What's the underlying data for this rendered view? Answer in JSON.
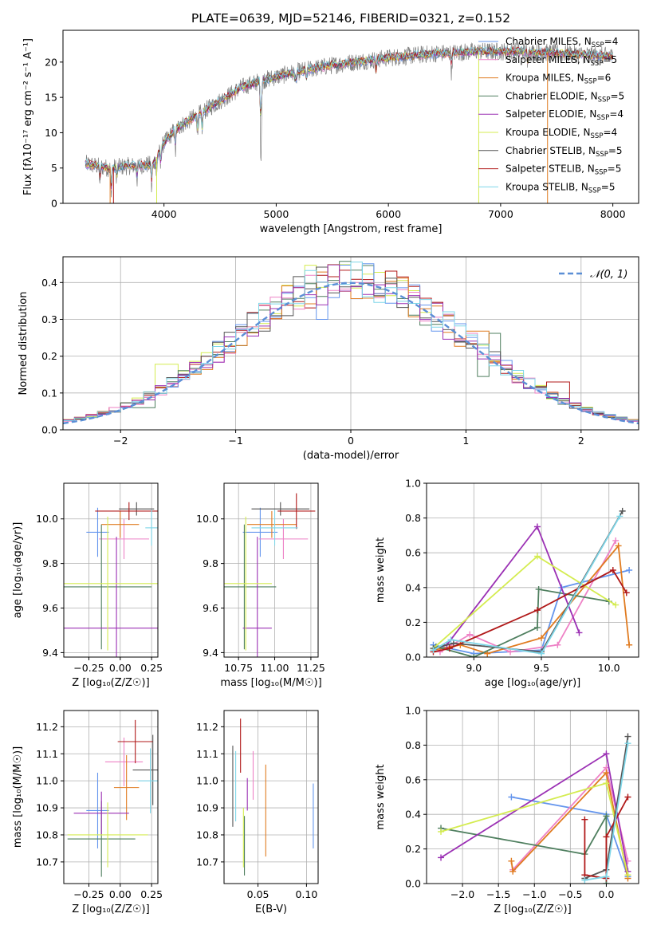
{
  "figure_title": "PLATE=0639, MJD=52146, FIBERID=0321, z=0.152",
  "colors": {
    "chabrier_miles": "#6495ed",
    "salpeter_miles": "#ee82c6",
    "kroupa_miles": "#e07b20",
    "chabrier_elodie": "#4f7f5f",
    "salpeter_elodie": "#9b30b4",
    "kroupa_elodie": "#d4ec50",
    "chabrier_stelib": "#555555",
    "salpeter_stelib": "#b01818",
    "kroupa_stelib": "#7ed6e8",
    "normal_curve": "#5b8fd6",
    "grid": "#b0b0b0"
  },
  "chart_data": [
    {
      "id": "spectrum",
      "type": "line",
      "xlabel": "wavelength [Angstrom, rest frame]",
      "ylabel": "Flux [fλ10⁻¹⁷ erg cm⁻² s⁻¹ A⁻¹]",
      "xlim": [
        3100,
        8230
      ],
      "ylim": [
        0,
        24.5
      ],
      "xticks": [
        4000,
        5000,
        6000,
        7000,
        8000
      ],
      "yticks": [
        0,
        5,
        10,
        15,
        20
      ],
      "grid": false,
      "legend": "top-right",
      "legend_entries": [
        {
          "key": "chabrier_miles",
          "prefix": "Chabrier MILES, N",
          "sub": "SSP",
          "suffix": "=4"
        },
        {
          "key": "salpeter_miles",
          "prefix": "Salpeter MILES, N",
          "sub": "SSP",
          "suffix": "=5"
        },
        {
          "key": "kroupa_miles",
          "prefix": "Kroupa MILES, N",
          "sub": "SSP",
          "suffix": "=6"
        },
        {
          "key": "chabrier_elodie",
          "prefix": "Chabrier ELODIE, N",
          "sub": "SSP",
          "suffix": "=5"
        },
        {
          "key": "salpeter_elodie",
          "prefix": "Salpeter ELODIE, N",
          "sub": "SSP",
          "suffix": "=4"
        },
        {
          "key": "kroupa_elodie",
          "prefix": "Kroupa ELODIE, N",
          "sub": "SSP",
          "suffix": "=4"
        },
        {
          "key": "chabrier_stelib",
          "prefix": "Chabrier STELIB, N",
          "sub": "SSP",
          "suffix": "=5"
        },
        {
          "key": "salpeter_stelib",
          "prefix": "Salpeter STELIB, N",
          "sub": "SSP",
          "suffix": "=5"
        },
        {
          "key": "kroupa_stelib",
          "prefix": "Kroupa STELIB, N",
          "sub": "SSP",
          "suffix": "=5"
        }
      ],
      "continuum": [
        [
          3300,
          5.6
        ],
        [
          3500,
          5.0
        ],
        [
          3700,
          5.3
        ],
        [
          3900,
          5.5
        ],
        [
          4000,
          8.5
        ],
        [
          4100,
          10.5
        ],
        [
          4300,
          12.5
        ],
        [
          4500,
          14.5
        ],
        [
          4700,
          16.5
        ],
        [
          4900,
          17.5
        ],
        [
          5100,
          18.3
        ],
        [
          5300,
          19.0
        ],
        [
          5600,
          19.8
        ],
        [
          6000,
          20.6
        ],
        [
          6400,
          21.2
        ],
        [
          6800,
          21.5
        ],
        [
          7200,
          21.5
        ],
        [
          7600,
          21.2
        ],
        [
          8000,
          20.8
        ]
      ],
      "absorption_lines": [
        [
          3430,
          2.5
        ],
        [
          3530,
          4.5
        ],
        [
          3580,
          2.0
        ],
        [
          3760,
          2.0
        ],
        [
          3890,
          3.5
        ],
        [
          3934,
          3.0
        ],
        [
          3970,
          2.5
        ],
        [
          4102,
          3.5
        ],
        [
          4300,
          3.0
        ],
        [
          4340,
          3.5
        ],
        [
          4861,
          3.0
        ],
        [
          4865,
          9.0
        ],
        [
          5175,
          2.5
        ],
        [
          5270,
          2.0
        ],
        [
          5890,
          2.5
        ],
        [
          6563,
          3.0
        ],
        [
          7240,
          2.0
        ]
      ],
      "model_spikes": [
        [
          3550,
          "salpeter_stelib"
        ],
        [
          3520,
          "kroupa_miles"
        ],
        [
          3935,
          "kroupa_elodie"
        ],
        [
          6805,
          "kroupa_elodie"
        ],
        [
          7418,
          "kroupa_miles"
        ]
      ]
    },
    {
      "id": "residuals",
      "type": "line",
      "xlabel": "(data-model)/error",
      "ylabel": "Normed distribution",
      "xlim": [
        -2.5,
        2.5
      ],
      "ylim": [
        0,
        0.47
      ],
      "xticks": [
        -2,
        -1,
        0,
        1,
        2
      ],
      "yticks": [
        0.0,
        0.1,
        0.2,
        0.3,
        0.4
      ],
      "grid": true,
      "legend": "top-right",
      "legend_label": "𝒩(0, 1)",
      "bins": 50,
      "normal_curve": {
        "mean": 0,
        "sigma": 1
      },
      "histograms": [
        {
          "key": "kroupa_elodie",
          "spikes": [
            [
              -0.35,
              0.447
            ],
            [
              -1.6,
              0.178
            ]
          ]
        },
        {
          "key": "chabrier_elodie",
          "spikes": [
            [
              1.25,
              0.262
            ],
            [
              1.15,
              0.145
            ],
            [
              -1.8,
              0.06
            ]
          ]
        },
        {
          "key": "salpeter_stelib",
          "spikes": [
            [
              0.05,
              0.409
            ],
            [
              1.8,
              0.13
            ]
          ]
        },
        {
          "key": "chabrier_miles",
          "spikes": [
            [
              -0.25,
              0.3
            ]
          ]
        },
        {
          "key": "salpeter_miles",
          "spikes": [
            [
              0.1,
              0.4
            ]
          ]
        },
        {
          "key": "kroupa_miles",
          "spikes": [
            [
              1.1,
              0.268
            ]
          ]
        },
        {
          "key": "chabrier_stelib",
          "spikes": [
            [
              -0.6,
              0.31
            ]
          ]
        },
        {
          "key": "salpeter_elodie",
          "spikes": [
            [
              0.35,
              0.37
            ]
          ]
        },
        {
          "key": "kroupa_stelib",
          "spikes": [
            [
              -0.1,
              0.395
            ]
          ]
        }
      ]
    },
    {
      "id": "age_vs_Z",
      "type": "scatter",
      "xlabel": "Z [log₁₀(Z/Z☉)]",
      "ylabel": "age  [log₁₀(age/yr)]",
      "xlim": [
        -0.45,
        0.3
      ],
      "ylim": [
        9.38,
        10.16
      ],
      "xticks": [
        -0.25,
        0.0,
        0.25
      ],
      "yticks": [
        9.4,
        9.6,
        9.8,
        10.0
      ],
      "grid": true,
      "points": [
        {
          "key": "chabrier_miles",
          "x": -0.18,
          "y": 9.94,
          "xerr": 0.09,
          "yerr": 0.11
        },
        {
          "key": "salpeter_miles",
          "x": 0.03,
          "y": 9.91,
          "xerr": 0.2,
          "yerr": 0.09
        },
        {
          "key": "kroupa_miles",
          "x": 0.0,
          "y": 9.975,
          "xerr": 0.15,
          "yerr": 0.06
        },
        {
          "key": "chabrier_elodie",
          "x": -0.15,
          "y": 9.695,
          "xerr": 0.4,
          "yerr": 0.28
        },
        {
          "key": "salpeter_elodie",
          "x": -0.03,
          "y": 9.51,
          "xerr": 0.42,
          "yerr": 0.41
        },
        {
          "key": "kroupa_elodie",
          "x": -0.1,
          "y": 9.71,
          "xerr": 0.41,
          "yerr": 0.3
        },
        {
          "key": "chabrier_stelib",
          "x": 0.13,
          "y": 10.045,
          "xerr": 0.14,
          "yerr": 0.03
        },
        {
          "key": "salpeter_stelib",
          "x": 0.07,
          "y": 10.035,
          "xerr": 0.27,
          "yerr": 0.04
        },
        {
          "key": "kroupa_stelib",
          "x": 0.25,
          "y": 9.96,
          "xerr": 0.05,
          "yerr": 0.08
        }
      ]
    },
    {
      "id": "age_vs_mass",
      "type": "scatter",
      "xlabel": "mass [log₁₀(M/M☉)]",
      "ylabel": "",
      "xlim": [
        10.65,
        11.3
      ],
      "ylim": [
        9.38,
        10.16
      ],
      "xticks": [
        10.75,
        11.0,
        11.25
      ],
      "yticks": [
        9.4,
        9.6,
        9.8,
        10.0
      ],
      "grid": true,
      "points": [
        {
          "key": "chabrier_miles",
          "x": 10.9,
          "y": 9.94,
          "xerr": 0.12,
          "yerr": 0.11
        },
        {
          "key": "salpeter_miles",
          "x": 11.06,
          "y": 9.91,
          "xerr": 0.17,
          "yerr": 0.09
        },
        {
          "key": "kroupa_miles",
          "x": 10.98,
          "y": 9.975,
          "xerr": 0.17,
          "yerr": 0.06
        },
        {
          "key": "chabrier_elodie",
          "x": 10.79,
          "y": 9.695,
          "xerr": 0.22,
          "yerr": 0.28
        },
        {
          "key": "salpeter_elodie",
          "x": 10.88,
          "y": 9.51,
          "xerr": 0.1,
          "yerr": 0.41
        },
        {
          "key": "kroupa_elodie",
          "x": 10.8,
          "y": 9.71,
          "xerr": 0.18,
          "yerr": 0.3
        },
        {
          "key": "chabrier_stelib",
          "x": 11.04,
          "y": 10.045,
          "xerr": 0.2,
          "yerr": 0.03
        },
        {
          "key": "salpeter_stelib",
          "x": 11.15,
          "y": 10.035,
          "xerr": 0.13,
          "yerr": 0.08
        },
        {
          "key": "kroupa_stelib",
          "x": 11.0,
          "y": 9.96,
          "xerr": 0.16,
          "yerr": 0.08
        }
      ]
    },
    {
      "id": "weight_vs_age",
      "type": "line",
      "xlabel": "age  [log₁₀(age/yr)]",
      "ylabel": "mass weight",
      "xlim": [
        8.65,
        10.22
      ],
      "ylim": [
        0.0,
        1.0
      ],
      "xticks": [
        9.0,
        9.5,
        10.0
      ],
      "yticks": [
        0.0,
        0.2,
        0.4,
        0.6,
        0.8,
        1.0
      ],
      "grid": true,
      "series": [
        {
          "key": "chabrier_miles",
          "x": [
            8.7,
            9.0,
            9.5,
            9.65,
            10.15
          ],
          "y": [
            0.07,
            0.02,
            0.04,
            0.4,
            0.5
          ]
        },
        {
          "key": "salpeter_miles",
          "x": [
            8.75,
            8.97,
            9.27,
            9.62,
            10.05
          ],
          "y": [
            0.03,
            0.13,
            0.03,
            0.07,
            0.67
          ]
        },
        {
          "key": "kroupa_miles",
          "x": [
            8.7,
            8.9,
            9.1,
            9.5,
            10.07,
            10.15
          ],
          "y": [
            0.04,
            0.07,
            0.02,
            0.11,
            0.64,
            0.07
          ]
        },
        {
          "key": "chabrier_elodie",
          "x": [
            8.72,
            9.0,
            9.47,
            9.48,
            10.0
          ],
          "y": [
            0.06,
            0.0,
            0.17,
            0.39,
            0.32
          ]
        },
        {
          "key": "salpeter_elodie",
          "x": [
            8.8,
            9.47,
            9.78
          ],
          "y": [
            0.07,
            0.75,
            0.14
          ]
        },
        {
          "key": "kroupa_elodie",
          "x": [
            8.7,
            9.47,
            10.05
          ],
          "y": [
            0.05,
            0.58,
            0.3
          ]
        },
        {
          "key": "chabrier_stelib",
          "x": [
            8.7,
            8.85,
            9.5,
            10.1
          ],
          "y": [
            0.05,
            0.08,
            0.03,
            0.84
          ]
        },
        {
          "key": "salpeter_stelib",
          "x": [
            8.7,
            8.82,
            9.47,
            10.03,
            10.13
          ],
          "y": [
            0.03,
            0.05,
            0.27,
            0.5,
            0.37
          ]
        },
        {
          "key": "kroupa_stelib",
          "x": [
            8.7,
            8.83,
            9.5,
            10.08
          ],
          "y": [
            0.04,
            0.1,
            0.02,
            0.81
          ]
        }
      ]
    },
    {
      "id": "mass_vs_Z",
      "type": "scatter",
      "xlabel": "Z [log₁₀(Z/Z☉)]",
      "ylabel": "mass [log₁₀(M/M☉)]",
      "xlim": [
        -0.45,
        0.3
      ],
      "ylim": [
        10.62,
        11.26
      ],
      "xticks": [
        -0.25,
        0.0,
        0.25
      ],
      "yticks": [
        10.7,
        10.8,
        10.9,
        11.0,
        11.1,
        11.2
      ],
      "grid": true,
      "points": [
        {
          "key": "chabrier_miles",
          "x": -0.18,
          "y": 10.89,
          "xerr": 0.09,
          "yerr": 0.14
        },
        {
          "key": "salpeter_miles",
          "x": 0.03,
          "y": 11.07,
          "xerr": 0.15,
          "yerr": 0.09
        },
        {
          "key": "kroupa_miles",
          "x": 0.05,
          "y": 10.975,
          "xerr": 0.1,
          "yerr": 0.12
        },
        {
          "key": "chabrier_elodie",
          "x": -0.15,
          "y": 10.785,
          "xerr": 0.27,
          "yerr": 0.14
        },
        {
          "key": "salpeter_elodie",
          "x": -0.15,
          "y": 10.88,
          "xerr": 0.22,
          "yerr": 0.08
        },
        {
          "key": "kroupa_elodie",
          "x": -0.1,
          "y": 10.8,
          "xerr": 0.32,
          "yerr": 0.12
        },
        {
          "key": "chabrier_stelib",
          "x": 0.26,
          "y": 11.04,
          "xerr": 0.16,
          "yerr": 0.13
        },
        {
          "key": "salpeter_stelib",
          "x": 0.12,
          "y": 11.145,
          "xerr": 0.14,
          "yerr": 0.08
        },
        {
          "key": "kroupa_stelib",
          "x": 0.24,
          "y": 11.0,
          "xerr": 0.1,
          "yerr": 0.12
        }
      ]
    },
    {
      "id": "mass_vs_ebv",
      "type": "scatter",
      "xlabel": "E(B-V)",
      "ylabel": "",
      "xlim": [
        0.015,
        0.112
      ],
      "ylim": [
        10.62,
        11.26
      ],
      "xticks": [
        0.05,
        0.1
      ],
      "yticks": [
        10.7,
        10.8,
        10.9,
        11.0,
        11.1,
        11.2
      ],
      "grid": true,
      "points": [
        {
          "key": "chabrier_miles",
          "x": 0.107,
          "y": 10.87,
          "xerr": 0,
          "yerr": 0.12
        },
        {
          "key": "salpeter_miles",
          "x": 0.045,
          "y": 11.02,
          "xerr": 0,
          "yerr": 0.09
        },
        {
          "key": "kroupa_miles",
          "x": 0.058,
          "y": 10.89,
          "xerr": 0,
          "yerr": 0.17
        },
        {
          "key": "chabrier_elodie",
          "x": 0.036,
          "y": 10.76,
          "xerr": 0,
          "yerr": 0.11
        },
        {
          "key": "salpeter_elodie",
          "x": 0.039,
          "y": 10.95,
          "xerr": 0,
          "yerr": 0.06
        },
        {
          "key": "kroupa_elodie",
          "x": 0.035,
          "y": 10.79,
          "xerr": 0,
          "yerr": 0.11
        },
        {
          "key": "chabrier_stelib",
          "x": 0.024,
          "y": 10.98,
          "xerr": 0,
          "yerr": 0.15
        },
        {
          "key": "salpeter_stelib",
          "x": 0.032,
          "y": 11.13,
          "xerr": 0,
          "yerr": 0.1
        },
        {
          "key": "kroupa_stelib",
          "x": 0.027,
          "y": 10.98,
          "xerr": 0,
          "yerr": 0.13
        }
      ]
    },
    {
      "id": "weight_vs_Z",
      "type": "line",
      "xlabel": "Z [log₁₀(Z/Z☉)]",
      "ylabel": "mass weight",
      "xlim": [
        -2.5,
        0.45
      ],
      "ylim": [
        0.0,
        1.0
      ],
      "xticks": [
        -2.0,
        -1.5,
        -1.0,
        -0.5,
        0.0
      ],
      "yticks": [
        0.0,
        0.2,
        0.4,
        0.6,
        0.8,
        1.0
      ],
      "grid": true,
      "series": [
        {
          "key": "chabrier_miles",
          "x": [
            -1.32,
            0.0,
            0.3
          ],
          "y": [
            0.5,
            0.4,
            0.04
          ]
        },
        {
          "key": "salpeter_miles",
          "x": [
            -1.3,
            0.0,
            0.3
          ],
          "y": [
            0.08,
            0.67,
            0.13
          ]
        },
        {
          "key": "kroupa_miles",
          "x": [
            -1.32,
            -1.3,
            0.0,
            0.3
          ],
          "y": [
            0.13,
            0.07,
            0.64,
            0.03
          ]
        },
        {
          "key": "chabrier_elodie",
          "x": [
            -2.3,
            -0.3,
            0.0,
            0.0
          ],
          "y": [
            0.32,
            0.17,
            0.39,
            0.0
          ]
        },
        {
          "key": "salpeter_elodie",
          "x": [
            -2.3,
            0.0,
            0.3
          ],
          "y": [
            0.15,
            0.75,
            0.07
          ]
        },
        {
          "key": "kroupa_elodie",
          "x": [
            -2.3,
            0.0,
            0.3
          ],
          "y": [
            0.3,
            0.58,
            0.05
          ]
        },
        {
          "key": "chabrier_stelib",
          "x": [
            -0.3,
            0.0,
            0.3
          ],
          "y": [
            0.03,
            0.08,
            0.85
          ]
        },
        {
          "key": "salpeter_stelib",
          "x": [
            -0.3,
            -0.3,
            0.0,
            0.0,
            0.3
          ],
          "y": [
            0.37,
            0.05,
            0.03,
            0.27,
            0.5
          ]
        },
        {
          "key": "kroupa_stelib",
          "x": [
            -0.3,
            0.0,
            0.3
          ],
          "y": [
            0.02,
            0.04,
            0.81
          ]
        }
      ]
    }
  ]
}
